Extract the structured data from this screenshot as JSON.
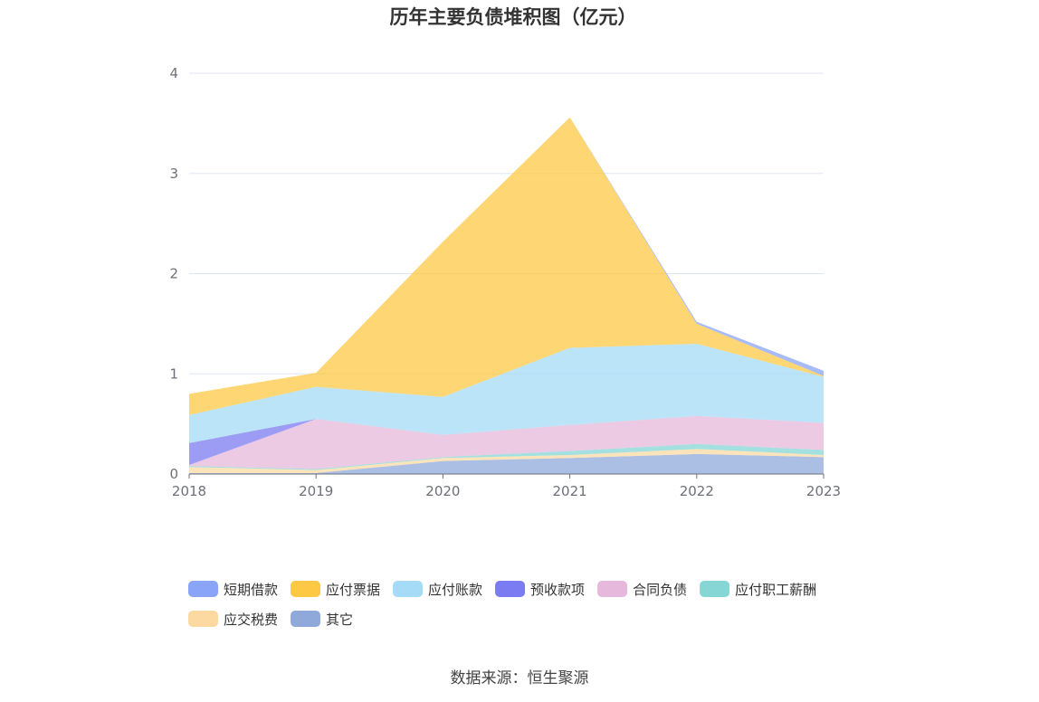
{
  "chart_data": {
    "type": "area",
    "title": "历年主要负债堆积图（亿元）",
    "x": [
      "2018",
      "2019",
      "2020",
      "2021",
      "2022",
      "2023"
    ],
    "ylim": [
      0,
      4
    ],
    "yticks": [
      "0",
      "1",
      "2",
      "3",
      "4"
    ],
    "grid": true,
    "legend_position": "bottom",
    "series": [
      {
        "name": "其它",
        "color": "#8fa9db",
        "values": [
          0.01,
          0.01,
          0.13,
          0.16,
          0.2,
          0.17
        ]
      },
      {
        "name": "应交税费",
        "color": "#fcd9a1",
        "values": [
          0.06,
          0.03,
          0.03,
          0.03,
          0.05,
          0.02
        ]
      },
      {
        "name": "应付职工薪酬",
        "color": "#86d6d6",
        "values": [
          0.01,
          0.01,
          0.01,
          0.04,
          0.05,
          0.05
        ]
      },
      {
        "name": "合同负债",
        "color": "#e6b8db",
        "values": [
          0.01,
          0.5,
          0.22,
          0.26,
          0.28,
          0.27
        ]
      },
      {
        "name": "预收款项",
        "color": "#7b7bf2",
        "values": [
          0.22,
          0.0,
          0.0,
          0.0,
          0.0,
          0.0
        ]
      },
      {
        "name": "应付账款",
        "color": "#a5dbf7",
        "values": [
          0.28,
          0.32,
          0.38,
          0.77,
          0.72,
          0.46
        ]
      },
      {
        "name": "应付票据",
        "color": "#fdc844",
        "values": [
          0.21,
          0.14,
          1.55,
          2.3,
          0.2,
          0.01
        ]
      },
      {
        "name": "短期借款",
        "color": "#8aa4f7",
        "values": [
          0.0,
          0.0,
          0.0,
          0.0,
          0.02,
          0.05
        ]
      }
    ],
    "legend_order": [
      "短期借款",
      "应付票据",
      "应付账款",
      "预收款项",
      "合同负债",
      "应付职工薪酬",
      "应交税费",
      "其它"
    ]
  },
  "source_text": "数据来源：恒生聚源"
}
